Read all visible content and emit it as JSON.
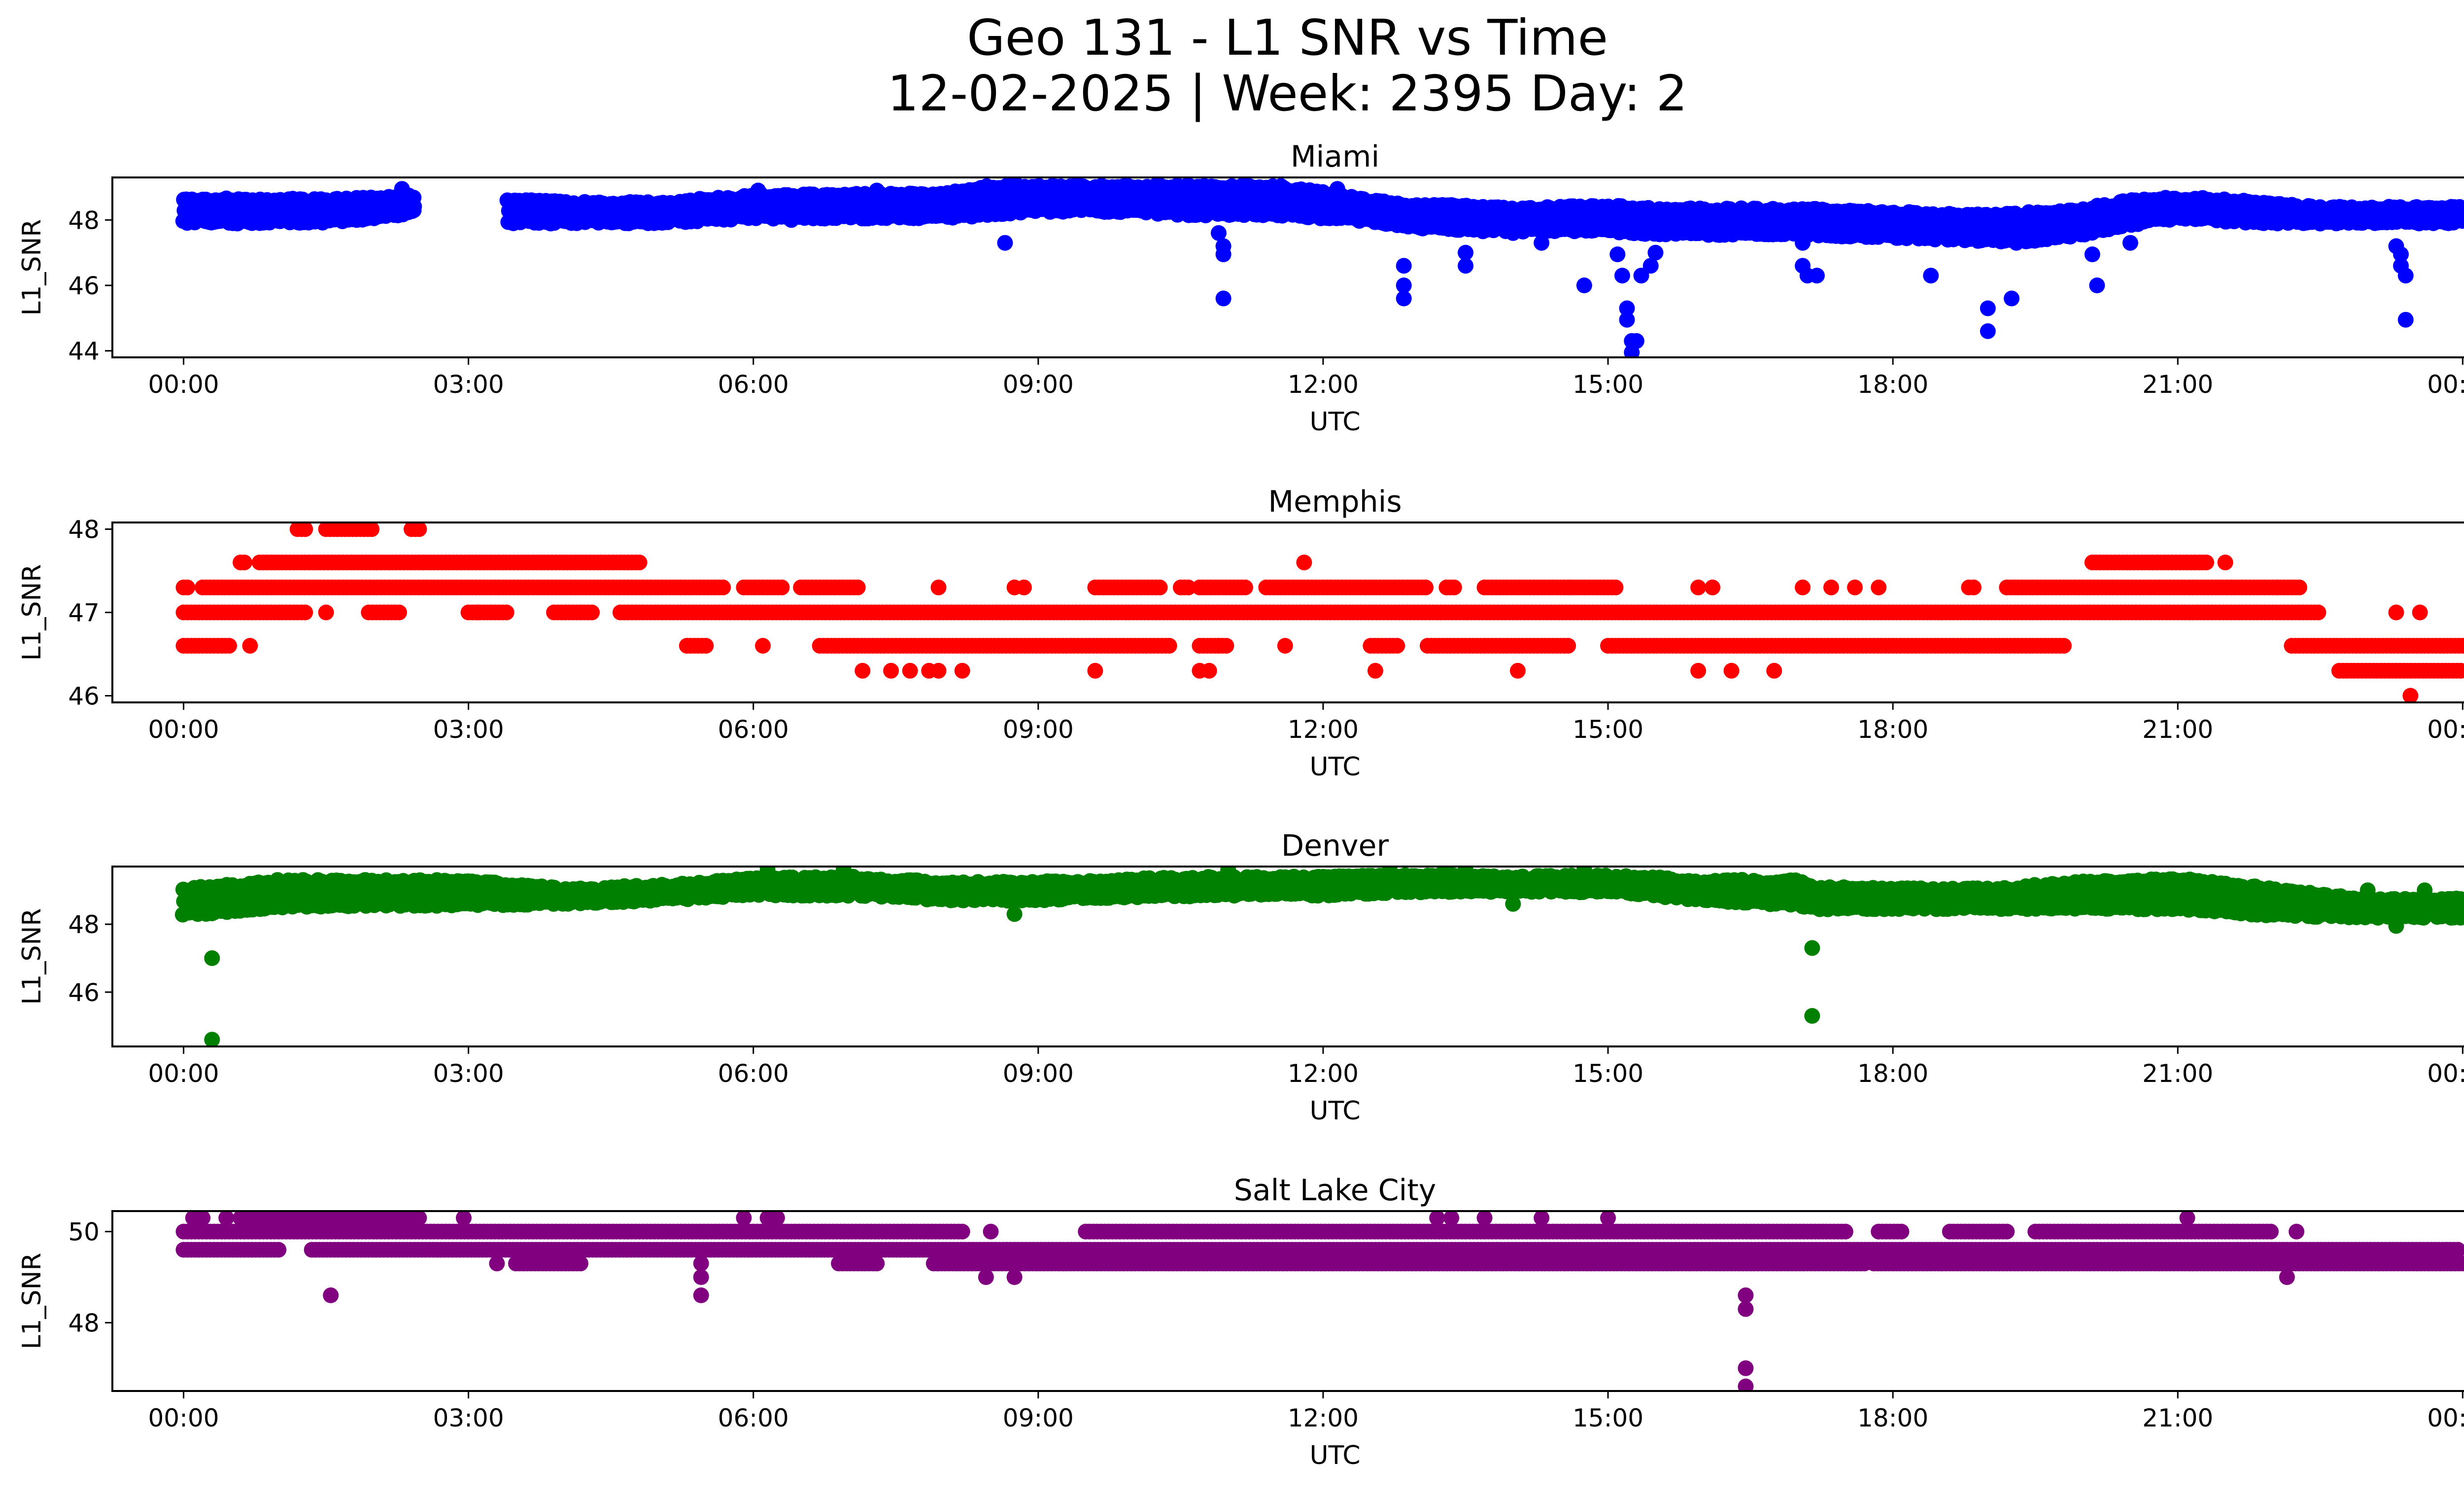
{
  "figure": {
    "title_line1": "Geo 131 - L1 SNR vs Time",
    "title_line2": "12-02-2025 | Week: 2395 Day: 2"
  },
  "chart_data": [
    {
      "type": "scatter",
      "title": "Miami",
      "color": "#0000ff",
      "xlabel": "UTC",
      "ylabel": "L1_SNR",
      "xlim": [
        -0.75,
        25.0
      ],
      "ylim": [
        43.8,
        49.3
      ],
      "xticks": [
        "00:00",
        "03:00",
        "06:00",
        "09:00",
        "12:00",
        "15:00",
        "18:00",
        "21:00",
        "00:00"
      ],
      "xtick_hours": [
        0,
        3,
        6,
        9,
        12,
        15,
        18,
        21,
        24
      ],
      "yticks": [
        44,
        46,
        48
      ],
      "band_hours": [
        0,
        0.5,
        1,
        1.5,
        2,
        2.45,
        3.4,
        4,
        5,
        6,
        7,
        8,
        8.5,
        9,
        10,
        10.5,
        11,
        11.5,
        12,
        12.5,
        13,
        13.5,
        14,
        15,
        15.5,
        16,
        17,
        18,
        19,
        19.5,
        20,
        20.5,
        21,
        21.5,
        22,
        22.5,
        23,
        24
      ],
      "band_low": [
        47.95,
        47.95,
        47.95,
        47.95,
        48.1,
        48.25,
        47.95,
        47.95,
        47.95,
        48.1,
        48.1,
        48.1,
        48.2,
        48.3,
        48.3,
        48.2,
        48.2,
        48.2,
        48.1,
        48.0,
        47.8,
        47.7,
        47.7,
        47.7,
        47.6,
        47.6,
        47.6,
        47.5,
        47.4,
        47.4,
        47.6,
        47.9,
        48.1,
        48.0,
        47.95,
        47.95,
        47.95,
        47.95
      ],
      "band_high": [
        48.6,
        48.6,
        48.6,
        48.6,
        48.65,
        48.7,
        48.6,
        48.5,
        48.5,
        48.7,
        48.75,
        48.75,
        49.0,
        49.0,
        49.0,
        49.0,
        49.0,
        49.0,
        48.8,
        48.55,
        48.4,
        48.4,
        48.3,
        48.4,
        48.3,
        48.3,
        48.3,
        48.2,
        48.1,
        48.2,
        48.3,
        48.55,
        48.65,
        48.6,
        48.45,
        48.35,
        48.35,
        48.35
      ],
      "gaps": [
        [
          2.45,
          3.4
        ]
      ],
      "outliers": [
        [
          0.2,
          48.6
        ],
        [
          0.55,
          48.6
        ],
        [
          1.15,
          48.65
        ],
        [
          2.3,
          48.95
        ],
        [
          3.6,
          48.0
        ],
        [
          6.05,
          48.9
        ],
        [
          6.4,
          48.0
        ],
        [
          7.3,
          48.9
        ],
        [
          8.65,
          47.3
        ],
        [
          10.5,
          48.9
        ],
        [
          10.9,
          47.6
        ],
        [
          10.95,
          47.2
        ],
        [
          10.95,
          46.95
        ],
        [
          10.95,
          45.6
        ],
        [
          11.55,
          48.95
        ],
        [
          12.15,
          48.95
        ],
        [
          12.85,
          46.6
        ],
        [
          12.85,
          46.0
        ],
        [
          12.85,
          45.6
        ],
        [
          13.5,
          46.6
        ],
        [
          13.5,
          47.0
        ],
        [
          14.0,
          47.6
        ],
        [
          14.3,
          47.3
        ],
        [
          14.75,
          46.0
        ],
        [
          15.1,
          46.95
        ],
        [
          15.15,
          46.3
        ],
        [
          15.2,
          45.3
        ],
        [
          15.2,
          44.95
        ],
        [
          15.25,
          44.3
        ],
        [
          15.25,
          43.95
        ],
        [
          15.3,
          44.3
        ],
        [
          15.35,
          46.3
        ],
        [
          15.45,
          46.6
        ],
        [
          15.5,
          47.0
        ],
        [
          17.05,
          46.6
        ],
        [
          17.1,
          46.3
        ],
        [
          17.2,
          46.3
        ],
        [
          17.05,
          47.3
        ],
        [
          18.4,
          46.3
        ],
        [
          19.0,
          45.3
        ],
        [
          19.0,
          44.6
        ],
        [
          19.25,
          45.6
        ],
        [
          19.3,
          47.3
        ],
        [
          20.15,
          46.0
        ],
        [
          20.1,
          46.95
        ],
        [
          20.5,
          47.3
        ],
        [
          23.3,
          47.2
        ],
        [
          23.35,
          46.95
        ],
        [
          23.35,
          46.6
        ],
        [
          23.4,
          46.3
        ],
        [
          23.4,
          44.95
        ]
      ]
    },
    {
      "type": "scatter",
      "title": "Memphis",
      "color": "#ff0000",
      "xlabel": "UTC",
      "ylabel": "L1_SNR",
      "xlim": [
        -0.75,
        25.0
      ],
      "ylim": [
        45.92,
        48.08
      ],
      "xticks": [
        "00:00",
        "03:00",
        "06:00",
        "09:00",
        "12:00",
        "15:00",
        "18:00",
        "21:00",
        "00:00"
      ],
      "xtick_hours": [
        0,
        3,
        6,
        9,
        12,
        15,
        18,
        21,
        24
      ],
      "yticks": [
        46,
        47,
        48
      ],
      "levels": [
        46.3,
        46.6,
        47.0,
        47.3,
        47.6,
        48.0
      ],
      "segments": [
        [
          46.6,
          0.0,
          0.5
        ],
        [
          46.6,
          5.3,
          5.5
        ],
        [
          46.6,
          6.7,
          10.4
        ],
        [
          46.6,
          10.7,
          11.0
        ],
        [
          46.6,
          12.5,
          12.8
        ],
        [
          46.6,
          13.1,
          14.6
        ],
        [
          46.6,
          15.0,
          19.8
        ],
        [
          46.6,
          22.2,
          24.0
        ],
        [
          46.3,
          22.7,
          24.0
        ],
        [
          47.0,
          0.0,
          1.3
        ],
        [
          47.0,
          1.95,
          2.3
        ],
        [
          47.0,
          3.0,
          3.4
        ],
        [
          47.0,
          3.9,
          4.3
        ],
        [
          47.0,
          4.6,
          22.5
        ],
        [
          47.3,
          0.0,
          0.05
        ],
        [
          47.3,
          0.2,
          5.7
        ],
        [
          47.3,
          5.9,
          6.3
        ],
        [
          47.3,
          6.5,
          7.1
        ],
        [
          47.3,
          9.6,
          10.3
        ],
        [
          47.3,
          10.5,
          10.6
        ],
        [
          47.3,
          10.7,
          11.2
        ],
        [
          47.3,
          11.4,
          13.1
        ],
        [
          47.3,
          13.3,
          13.4
        ],
        [
          47.3,
          13.7,
          14.6
        ],
        [
          47.3,
          14.6,
          15.1
        ],
        [
          47.3,
          19.2,
          22.3
        ],
        [
          47.6,
          0.6,
          0.65
        ],
        [
          47.6,
          0.8,
          4.8
        ],
        [
          47.6,
          20.1,
          21.3
        ],
        [
          48.0,
          1.2,
          1.3
        ],
        [
          48.0,
          1.5,
          2.0
        ],
        [
          48.0,
          2.4,
          2.5
        ]
      ],
      "outliers": [
        [
          0.7,
          46.6
        ],
        [
          1.5,
          47.0
        ],
        [
          3.1,
          47.0
        ],
        [
          6.1,
          46.6
        ],
        [
          7.15,
          46.3
        ],
        [
          7.45,
          46.3
        ],
        [
          7.65,
          46.3
        ],
        [
          7.85,
          46.3
        ],
        [
          7.95,
          46.3
        ],
        [
          8.2,
          46.3
        ],
        [
          7.95,
          47.3
        ],
        [
          8.75,
          47.3
        ],
        [
          8.85,
          47.3
        ],
        [
          9.6,
          46.3
        ],
        [
          10.7,
          46.3
        ],
        [
          10.8,
          46.3
        ],
        [
          10.9,
          46.6
        ],
        [
          11.8,
          47.6
        ],
        [
          11.6,
          46.6
        ],
        [
          12.55,
          46.3
        ],
        [
          14.05,
          46.3
        ],
        [
          15.95,
          46.3
        ],
        [
          16.3,
          46.3
        ],
        [
          16.75,
          46.3
        ],
        [
          15.95,
          47.3
        ],
        [
          16.1,
          47.3
        ],
        [
          17.05,
          47.3
        ],
        [
          17.35,
          47.3
        ],
        [
          17.6,
          47.3
        ],
        [
          17.85,
          47.3
        ],
        [
          18.8,
          47.3
        ],
        [
          18.85,
          47.3
        ],
        [
          21.5,
          47.6
        ],
        [
          22.05,
          47.3
        ],
        [
          23.3,
          47.0
        ],
        [
          23.55,
          47.0
        ],
        [
          23.45,
          46.0
        ]
      ]
    },
    {
      "type": "scatter",
      "title": "Denver",
      "color": "#008000",
      "xlabel": "UTC",
      "ylabel": "L1_SNR",
      "xlim": [
        -0.75,
        25.0
      ],
      "ylim": [
        44.4,
        49.7
      ],
      "xticks": [
        "00:00",
        "03:00",
        "06:00",
        "09:00",
        "12:00",
        "15:00",
        "18:00",
        "21:00",
        "00:00"
      ],
      "xtick_hours": [
        0,
        3,
        6,
        9,
        12,
        15,
        18,
        21,
        24
      ],
      "yticks": [
        46,
        48
      ],
      "band_hours": [
        0,
        1,
        2,
        3,
        4,
        5,
        6,
        7,
        8,
        9,
        10,
        11,
        12,
        13,
        14,
        15,
        16,
        17,
        17.2,
        18,
        19,
        20,
        21,
        22,
        23,
        24
      ],
      "band_low": [
        48.3,
        48.55,
        48.6,
        48.6,
        48.65,
        48.75,
        48.9,
        48.9,
        48.75,
        48.75,
        48.85,
        48.9,
        48.9,
        49.0,
        49.0,
        49.0,
        48.75,
        48.6,
        48.5,
        48.5,
        48.5,
        48.5,
        48.5,
        48.3,
        48.25,
        48.25
      ],
      "band_high": [
        49.0,
        49.25,
        49.25,
        49.25,
        49.0,
        49.1,
        49.3,
        49.35,
        49.2,
        49.2,
        49.3,
        49.35,
        49.35,
        49.4,
        49.35,
        49.4,
        49.25,
        49.25,
        49.05,
        49.0,
        49.0,
        49.2,
        49.3,
        49.0,
        48.7,
        48.7
      ],
      "gaps": [],
      "outliers": [
        [
          0.3,
          47.0
        ],
        [
          0.3,
          44.6
        ],
        [
          17.15,
          47.3
        ],
        [
          17.15,
          45.3
        ],
        [
          0.15,
          48.3
        ],
        [
          6.15,
          49.6
        ],
        [
          6.95,
          49.6
        ],
        [
          8.75,
          48.3
        ],
        [
          11.0,
          49.6
        ],
        [
          12.7,
          49.6
        ],
        [
          13.3,
          49.6
        ],
        [
          13.5,
          49.6
        ],
        [
          14.75,
          49.6
        ],
        [
          14.0,
          48.6
        ],
        [
          23.3,
          47.95
        ],
        [
          23.0,
          49.0
        ],
        [
          23.6,
          49.0
        ]
      ]
    },
    {
      "type": "scatter",
      "title": "Salt Lake City",
      "color": "#800080",
      "xlabel": "UTC",
      "ylabel": "L1_SNR",
      "xlim": [
        -0.75,
        25.0
      ],
      "ylim": [
        46.5,
        50.45
      ],
      "xticks": [
        "00:00",
        "03:00",
        "06:00",
        "09:00",
        "12:00",
        "15:00",
        "18:00",
        "21:00",
        "00:00"
      ],
      "xtick_hours": [
        0,
        3,
        6,
        9,
        12,
        15,
        18,
        21,
        24
      ],
      "yticks": [
        48,
        50
      ],
      "levels": [
        49.3,
        49.6,
        50.0,
        50.3
      ],
      "segments": [
        [
          49.6,
          0.0,
          1.0
        ],
        [
          49.6,
          1.35,
          23.95
        ],
        [
          50.0,
          0.0,
          8.2
        ],
        [
          50.0,
          9.5,
          17.5
        ],
        [
          50.0,
          17.85,
          18.1
        ],
        [
          50.0,
          18.6,
          19.2
        ],
        [
          50.0,
          19.5,
          22.0
        ],
        [
          50.3,
          0.6,
          2.5
        ],
        [
          49.3,
          3.5,
          4.2
        ],
        [
          49.3,
          6.9,
          7.3
        ],
        [
          49.3,
          7.9,
          17.7
        ],
        [
          49.3,
          17.8,
          24.0
        ]
      ],
      "outliers": [
        [
          0.1,
          50.3
        ],
        [
          0.2,
          50.3
        ],
        [
          0.45,
          50.3
        ],
        [
          1.55,
          48.6
        ],
        [
          2.95,
          50.3
        ],
        [
          3.3,
          49.3
        ],
        [
          5.45,
          49.3
        ],
        [
          5.45,
          49.0
        ],
        [
          5.45,
          48.6
        ],
        [
          5.9,
          50.3
        ],
        [
          6.15,
          50.3
        ],
        [
          6.25,
          50.3
        ],
        [
          8.45,
          49.0
        ],
        [
          8.5,
          50.0
        ],
        [
          8.75,
          49.0
        ],
        [
          13.2,
          50.3
        ],
        [
          13.35,
          50.3
        ],
        [
          13.7,
          50.3
        ],
        [
          14.3,
          50.3
        ],
        [
          15.0,
          50.3
        ],
        [
          16.45,
          48.6
        ],
        [
          16.45,
          48.3
        ],
        [
          16.45,
          47.0
        ],
        [
          16.45,
          46.6
        ],
        [
          21.1,
          50.3
        ],
        [
          22.15,
          49.0
        ],
        [
          22.25,
          50.0
        ]
      ]
    }
  ]
}
